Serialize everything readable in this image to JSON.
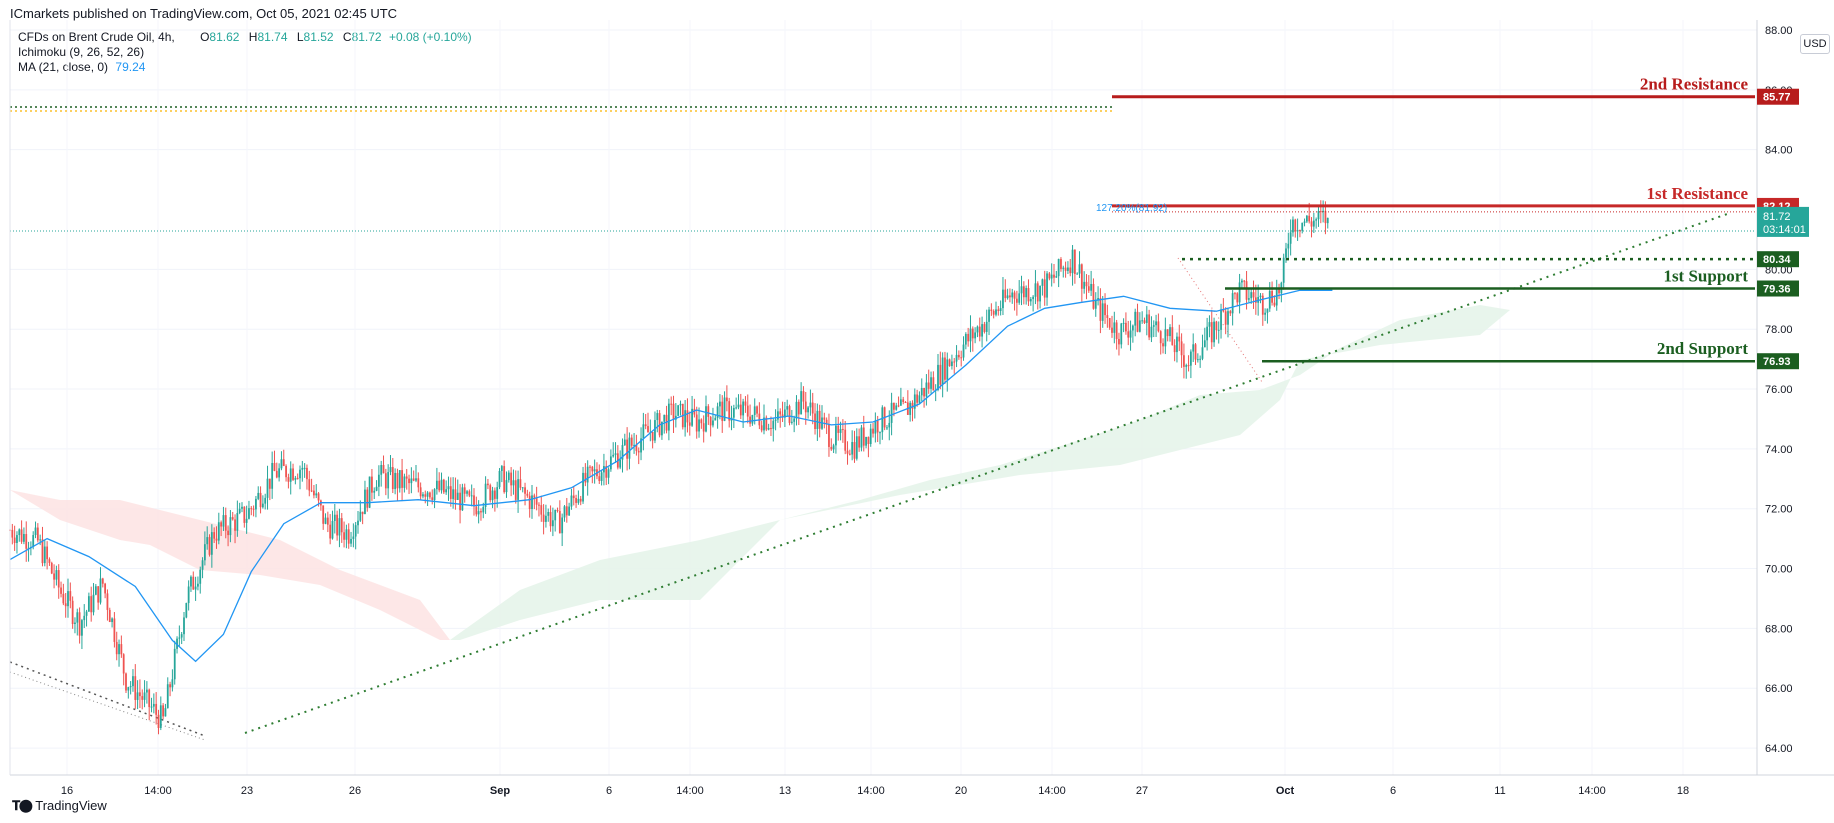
{
  "header": {
    "published": "ICmarkets published on TradingView.com, Oct 05, 2021 02:45 UTC"
  },
  "legend": {
    "symbol": "CFDs on Brent Crude Oil, 4h,",
    "open_label": "O",
    "open": "81.62",
    "high_label": "H",
    "high": "81.74",
    "low_label": "L",
    "low": "81.52",
    "close_label": "C",
    "close": "81.72",
    "change": "+0.08 (+0.10%)",
    "ichimoku": "Ichimoku (9, 26, 52, 26)",
    "ma_label": "MA (21, close, 0)",
    "ma_value": "79.24"
  },
  "currency_button": "USD",
  "footer": {
    "brand": "TradingView"
  },
  "chart_data": {
    "type": "candlestick",
    "title": "",
    "xlabel": "",
    "ylabel": "",
    "ylim": [
      63.6,
      88.4
    ],
    "y_ticks": [
      "64.00",
      "66.00",
      "68.00",
      "70.00",
      "72.00",
      "74.00",
      "76.00",
      "78.00",
      "80.00",
      "84.00",
      "86.00",
      "88.00"
    ],
    "x_ticks": [
      "16",
      "14:00",
      "23",
      "26",
      "Sep",
      "6",
      "14:00",
      "13",
      "14:00",
      "20",
      "14:00",
      "27",
      "Oct",
      "6",
      "11",
      "14:00",
      "18"
    ],
    "grid": true,
    "candle_anchors": [
      {
        "x": 0,
        "y": 71.3
      },
      {
        "x": 12,
        "y": 70.9
      },
      {
        "x": 22,
        "y": 69.2
      },
      {
        "x": 30,
        "y": 68.2
      },
      {
        "x": 40,
        "y": 69.5
      },
      {
        "x": 50,
        "y": 66.3
      },
      {
        "x": 58,
        "y": 65.6
      },
      {
        "x": 66,
        "y": 64.9
      },
      {
        "x": 76,
        "y": 69.0
      },
      {
        "x": 88,
        "y": 71.2
      },
      {
        "x": 102,
        "y": 71.8
      },
      {
        "x": 114,
        "y": 73.2
      },
      {
        "x": 126,
        "y": 73.4
      },
      {
        "x": 136,
        "y": 71.5
      },
      {
        "x": 146,
        "y": 71.2
      },
      {
        "x": 158,
        "y": 73.1
      },
      {
        "x": 172,
        "y": 72.8
      },
      {
        "x": 186,
        "y": 72.6
      },
      {
        "x": 200,
        "y": 72.1
      },
      {
        "x": 212,
        "y": 73.0
      },
      {
        "x": 226,
        "y": 72.2
      },
      {
        "x": 236,
        "y": 71.5
      },
      {
        "x": 248,
        "y": 72.9
      },
      {
        "x": 262,
        "y": 73.8
      },
      {
        "x": 276,
        "y": 74.6
      },
      {
        "x": 286,
        "y": 75.2
      },
      {
        "x": 296,
        "y": 74.9
      },
      {
        "x": 306,
        "y": 75.3
      },
      {
        "x": 318,
        "y": 75.2
      },
      {
        "x": 330,
        "y": 74.9
      },
      {
        "x": 342,
        "y": 75.6
      },
      {
        "x": 354,
        "y": 74.4
      },
      {
        "x": 364,
        "y": 74.1
      },
      {
        "x": 374,
        "y": 74.9
      },
      {
        "x": 386,
        "y": 75.3
      },
      {
        "x": 398,
        "y": 76.3
      },
      {
        "x": 410,
        "y": 77.4
      },
      {
        "x": 422,
        "y": 78.4
      },
      {
        "x": 432,
        "y": 79.2
      },
      {
        "x": 446,
        "y": 79.4
      },
      {
        "x": 458,
        "y": 80.4
      },
      {
        "x": 468,
        "y": 78.8
      },
      {
        "x": 478,
        "y": 77.9
      },
      {
        "x": 488,
        "y": 78.3
      },
      {
        "x": 498,
        "y": 77.8
      },
      {
        "x": 508,
        "y": 76.9
      },
      {
        "x": 518,
        "y": 77.9
      },
      {
        "x": 530,
        "y": 79.3
      },
      {
        "x": 540,
        "y": 78.9
      },
      {
        "x": 548,
        "y": 79.4
      },
      {
        "x": 552,
        "y": 81.6
      },
      {
        "x": 560,
        "y": 81.6
      },
      {
        "x": 568,
        "y": 81.72
      }
    ],
    "ma": {
      "name": "MA (21, close, 0)",
      "points": [
        {
          "x": 0,
          "y": 70.3
        },
        {
          "x": 16,
          "y": 71.0
        },
        {
          "x": 34,
          "y": 70.4
        },
        {
          "x": 54,
          "y": 69.4
        },
        {
          "x": 70,
          "y": 67.6
        },
        {
          "x": 80,
          "y": 66.9
        },
        {
          "x": 92,
          "y": 67.8
        },
        {
          "x": 104,
          "y": 69.9
        },
        {
          "x": 118,
          "y": 71.5
        },
        {
          "x": 134,
          "y": 72.2
        },
        {
          "x": 154,
          "y": 72.2
        },
        {
          "x": 176,
          "y": 72.3
        },
        {
          "x": 200,
          "y": 72.1
        },
        {
          "x": 224,
          "y": 72.3
        },
        {
          "x": 242,
          "y": 72.7
        },
        {
          "x": 262,
          "y": 73.6
        },
        {
          "x": 280,
          "y": 74.8
        },
        {
          "x": 296,
          "y": 75.3
        },
        {
          "x": 316,
          "y": 74.9
        },
        {
          "x": 336,
          "y": 75.1
        },
        {
          "x": 354,
          "y": 74.8
        },
        {
          "x": 372,
          "y": 74.9
        },
        {
          "x": 392,
          "y": 75.5
        },
        {
          "x": 412,
          "y": 76.8
        },
        {
          "x": 430,
          "y": 78.1
        },
        {
          "x": 446,
          "y": 78.7
        },
        {
          "x": 462,
          "y": 78.9
        },
        {
          "x": 480,
          "y": 79.1
        },
        {
          "x": 500,
          "y": 78.7
        },
        {
          "x": 520,
          "y": 78.6
        },
        {
          "x": 540,
          "y": 79.0
        },
        {
          "x": 556,
          "y": 79.3
        },
        {
          "x": 570,
          "y": 79.3
        }
      ]
    },
    "levels": [
      {
        "label": "2nd Resistance",
        "value": 85.77,
        "color": "#b71c1c"
      },
      {
        "label": "1st Resistance",
        "value": 82.12,
        "color": "#c62828"
      },
      {
        "label": "",
        "value": 80.34,
        "color": "#1b5e20"
      },
      {
        "label": "1st Support",
        "value": 79.36,
        "color": "#1b5e20"
      },
      {
        "label": "2nd Support",
        "value": 76.93,
        "color": "#1b5e20"
      }
    ],
    "fib_label": "127.20%(81.92)",
    "price_labels": {
      "resistance2": "85.77",
      "resistance1": "82.12",
      "last_price": "81.72",
      "countdown": "03:14:01",
      "support_dotted": "80.34",
      "support1": "79.36",
      "support2": "76.93"
    },
    "colors": {
      "up": "#26a69a",
      "down": "#ef5350",
      "ma": "#2196f3",
      "cloud_green": "#e6f4ea",
      "cloud_red": "#fde3e3",
      "trend": "#2e7d32"
    }
  }
}
